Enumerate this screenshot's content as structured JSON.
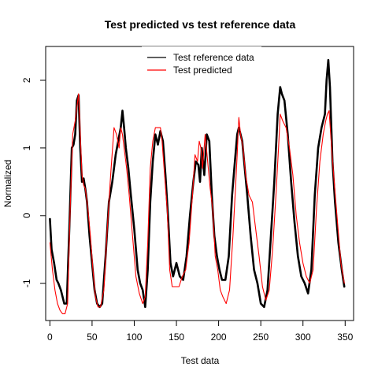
{
  "chart_data": {
    "type": "line",
    "title": "Test predicted vs test reference data",
    "xlabel": "Test data",
    "ylabel": "Normalized",
    "xlim": [
      -5,
      360
    ],
    "ylim": [
      -1.55,
      2.5
    ],
    "x_ticks": [
      0,
      50,
      100,
      150,
      200,
      250,
      300,
      350
    ],
    "y_ticks": [
      -1,
      0,
      1,
      2
    ],
    "legend_position": "top-center",
    "grid": false,
    "series": [
      {
        "name": "Test reference data",
        "color": "#000000",
        "x": [
          0,
          2,
          5,
          8,
          10,
          13,
          17,
          20,
          23,
          26,
          28,
          30,
          32,
          34,
          36,
          38,
          40,
          42,
          44,
          47,
          50,
          53,
          56,
          59,
          62,
          66,
          70,
          74,
          78,
          81,
          84,
          86,
          88,
          90,
          93,
          96,
          100,
          104,
          107,
          110,
          113,
          116,
          119,
          122,
          125,
          128,
          131,
          134,
          137,
          140,
          143,
          146,
          150,
          154,
          158,
          162,
          166,
          170,
          173,
          176,
          178,
          180,
          183,
          186,
          189,
          192,
          195,
          198,
          201,
          204,
          208,
          212,
          216,
          220,
          222,
          224,
          226,
          228,
          231,
          234,
          238,
          242,
          246,
          250,
          254,
          258,
          262,
          266,
          270,
          273,
          275,
          278,
          282,
          286,
          290,
          294,
          298,
          302,
          306,
          310,
          314,
          318,
          322,
          326,
          328,
          330,
          332,
          335,
          338,
          342,
          346,
          349
        ],
        "y": [
          -0.05,
          -0.5,
          -0.7,
          -0.95,
          -1.0,
          -1.1,
          -1.3,
          -1.3,
          -0.2,
          1.0,
          1.05,
          1.2,
          1.7,
          1.78,
          1.0,
          0.5,
          0.55,
          0.4,
          0.2,
          -0.3,
          -0.7,
          -1.1,
          -1.3,
          -1.35,
          -1.3,
          -0.6,
          0.2,
          0.5,
          0.9,
          1.1,
          1.3,
          1.55,
          1.3,
          1.0,
          0.7,
          0.3,
          -0.2,
          -0.8,
          -1.0,
          -1.1,
          -1.35,
          -0.8,
          0.2,
          0.8,
          1.2,
          1.05,
          1.25,
          1.1,
          0.6,
          0.0,
          -0.7,
          -0.9,
          -0.7,
          -0.9,
          -0.95,
          -0.6,
          0.0,
          0.5,
          0.8,
          0.75,
          0.5,
          1.0,
          0.6,
          1.2,
          1.1,
          0.3,
          -0.3,
          -0.6,
          -0.8,
          -0.95,
          -0.95,
          -0.6,
          0.3,
          0.9,
          1.2,
          1.3,
          1.2,
          1.1,
          0.7,
          0.3,
          -0.3,
          -0.8,
          -1.0,
          -1.3,
          -1.35,
          -1.1,
          -0.3,
          0.5,
          1.5,
          1.9,
          1.8,
          1.7,
          1.2,
          0.5,
          -0.1,
          -0.6,
          -0.9,
          -1.0,
          -1.15,
          -0.8,
          0.3,
          1.0,
          1.3,
          1.5,
          2.0,
          2.3,
          1.9,
          0.8,
          0.2,
          -0.4,
          -0.8,
          -1.05
        ]
      },
      {
        "name": "Test predicted",
        "color": "#ff0000",
        "x": [
          0,
          3,
          6,
          9,
          12,
          15,
          18,
          21,
          24,
          27,
          30,
          32,
          34,
          36,
          38,
          40,
          42,
          45,
          48,
          51,
          54,
          57,
          60,
          64,
          68,
          72,
          76,
          79,
          82,
          84,
          86,
          88,
          91,
          94,
          98,
          102,
          106,
          110,
          113,
          116,
          119,
          122,
          125,
          128,
          131,
          133,
          136,
          139,
          142,
          145,
          149,
          153,
          157,
          161,
          165,
          169,
          172,
          175,
          177,
          179,
          181,
          184,
          187,
          190,
          193,
          196,
          199,
          202,
          205,
          209,
          213,
          217,
          220,
          222,
          224,
          226,
          229,
          232,
          236,
          240,
          244,
          248,
          252,
          256,
          260,
          264,
          268,
          271,
          273,
          276,
          280,
          284,
          288,
          292,
          296,
          300,
          304,
          308,
          312,
          316,
          320,
          324,
          327,
          329,
          331,
          334,
          337,
          341,
          345,
          349
        ],
        "y": [
          -0.4,
          -0.8,
          -1.1,
          -1.3,
          -1.4,
          -1.45,
          -1.45,
          -1.3,
          0.1,
          1.2,
          1.4,
          1.6,
          1.8,
          1.2,
          0.6,
          0.45,
          0.4,
          0.1,
          -0.3,
          -0.8,
          -1.2,
          -1.35,
          -1.35,
          -1.1,
          -0.2,
          0.6,
          1.3,
          1.2,
          1.0,
          1.3,
          1.2,
          1.0,
          0.7,
          0.3,
          -0.3,
          -0.9,
          -1.15,
          -1.3,
          -1.2,
          -0.4,
          0.7,
          1.1,
          1.3,
          1.3,
          1.3,
          1.1,
          0.6,
          0.1,
          -0.8,
          -1.05,
          -1.05,
          -1.05,
          -0.9,
          -0.8,
          -0.4,
          0.3,
          0.9,
          0.8,
          1.1,
          1.0,
          0.7,
          1.2,
          0.8,
          0.4,
          0.1,
          -0.6,
          -0.8,
          -1.1,
          -1.2,
          -1.3,
          -1.1,
          -0.3,
          0.4,
          0.9,
          1.45,
          1.2,
          1.0,
          0.6,
          0.3,
          0.2,
          -0.2,
          -0.6,
          -1.05,
          -1.25,
          -1.1,
          -0.5,
          0.3,
          1.0,
          1.5,
          1.4,
          1.3,
          1.0,
          0.6,
          0.0,
          -0.4,
          -0.7,
          -0.9,
          -1.0,
          -0.8,
          0.1,
          0.8,
          1.2,
          1.4,
          1.5,
          1.55,
          1.0,
          0.5,
          -0.1,
          -0.7,
          -1.0
        ]
      }
    ]
  }
}
